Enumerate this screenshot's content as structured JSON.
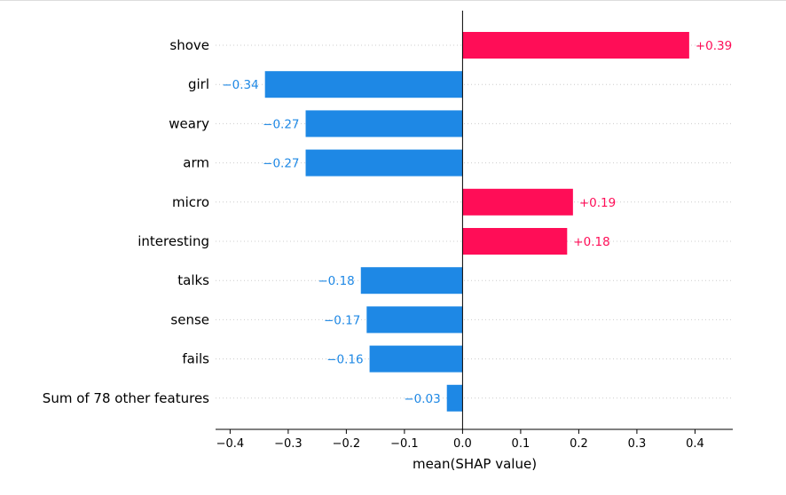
{
  "chart_data": {
    "type": "bar",
    "orientation": "horizontal",
    "title": "",
    "xlabel": "mean(SHAP value)",
    "ylabel": "",
    "categories": [
      "shove",
      "girl",
      "weary",
      "arm",
      "micro",
      "interesting",
      "talks",
      "sense",
      "fails",
      "Sum of 78 other features"
    ],
    "values": [
      0.39,
      -0.34,
      -0.27,
      -0.27,
      0.19,
      0.18,
      -0.175,
      -0.165,
      -0.16,
      -0.027
    ],
    "value_labels": [
      "+0.39",
      "−0.34",
      "−0.27",
      "−0.27",
      "+0.19",
      "+0.18",
      "−0.18",
      "−0.17",
      "−0.16",
      "−0.03"
    ],
    "xlim": [
      -0.425,
      0.465
    ],
    "xticks": [
      -0.4,
      -0.3,
      -0.2,
      -0.1,
      0.0,
      0.1,
      0.2,
      0.3,
      0.4
    ],
    "xtick_labels": [
      "−0.4",
      "−0.3",
      "−0.2",
      "−0.1",
      "0.0",
      "0.1",
      "0.2",
      "0.3",
      "0.4"
    ],
    "colors": {
      "positive": "#ff0d57",
      "negative": "#1e88e5"
    },
    "grid": "dotted horizontal guide per row",
    "legend": "none"
  }
}
